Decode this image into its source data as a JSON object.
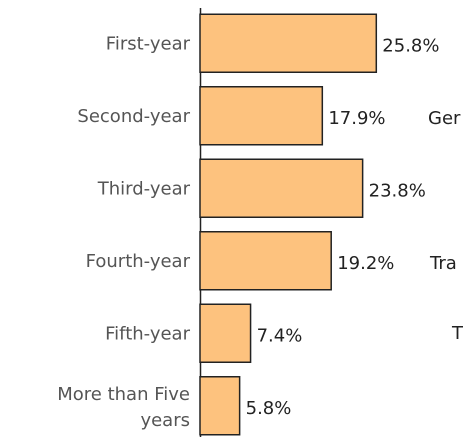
{
  "chart_data": {
    "type": "bar",
    "orientation": "horizontal",
    "categories": [
      "First-year",
      "Second-year",
      "Third-year",
      "Fourth-year",
      "Fifth-year",
      "More than Five years"
    ],
    "values": [
      25.8,
      17.9,
      23.8,
      19.2,
      7.4,
      5.8
    ],
    "value_labels": [
      "25.8%",
      "17.9%",
      "23.8%",
      "19.2%",
      "7.4%",
      "5.8%"
    ],
    "color": "#fdc27e",
    "xlim": [
      0,
      30
    ],
    "annotations": [
      "Ger",
      "Tra",
      "T"
    ]
  }
}
